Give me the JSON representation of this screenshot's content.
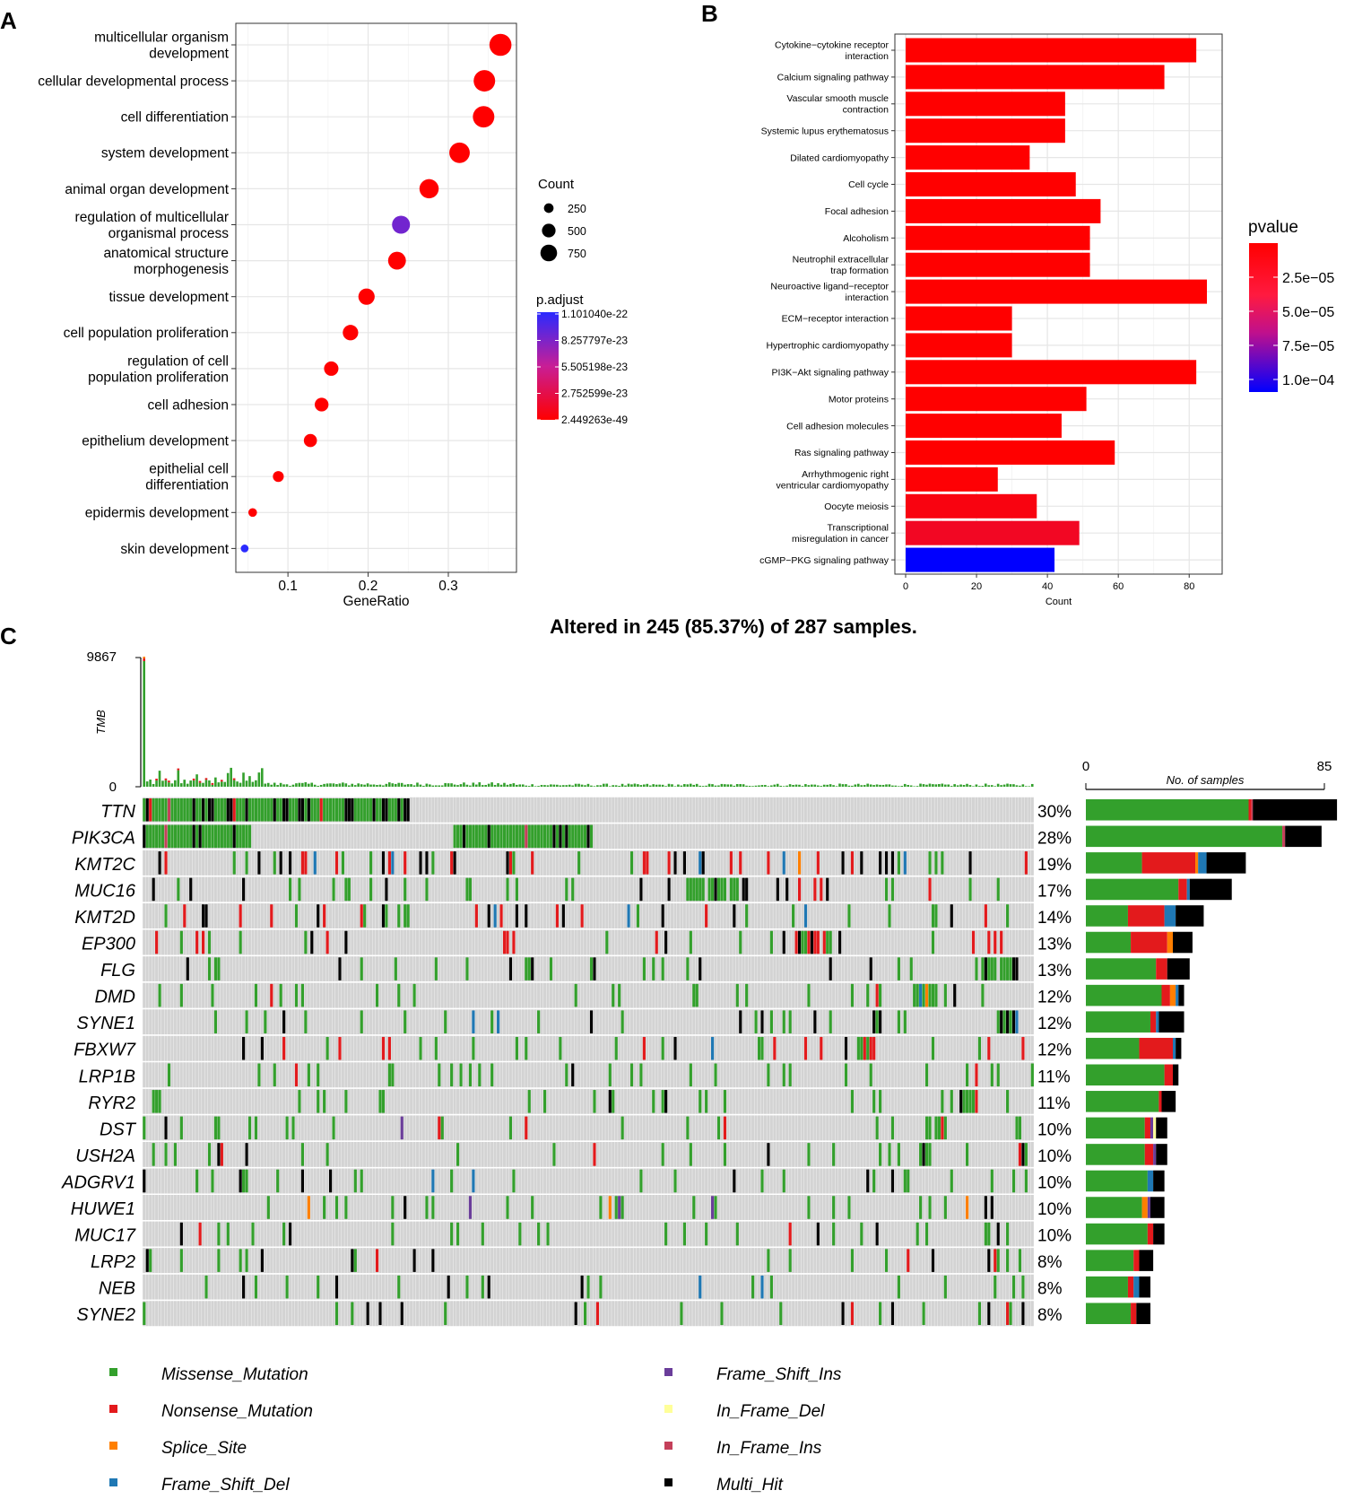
{
  "panels": {
    "a": "A",
    "b": "B",
    "c": "C"
  },
  "chart_data": [
    {
      "id": "A",
      "type": "scatter",
      "subtype": "dotplot",
      "xlabel": "GeneRatio",
      "ylabel": "",
      "xlim": [
        0.035,
        0.385
      ],
      "xticks": [
        0.1,
        0.2,
        0.3
      ],
      "xtick_labels": [
        "0.1",
        "0.2",
        "0.3"
      ],
      "grid": true,
      "categories": [
        "multicellular organism\ndevelopment",
        "cellular developmental process",
        "cell differentiation",
        "system development",
        "animal organ development",
        "regulation of multicellular\norganismal process",
        "anatomical structure\nmorphogenesis",
        "tissue development",
        "cell population proliferation",
        "regulation of cell\npopulation proliferation",
        "cell adhesion",
        "epithelium development",
        "epithelial cell\ndifferentiation",
        "epidermis development",
        "skin development"
      ],
      "gene_ratio": [
        0.365,
        0.345,
        0.344,
        0.314,
        0.276,
        0.241,
        0.236,
        0.198,
        0.178,
        0.154,
        0.142,
        0.128,
        0.088,
        0.056,
        0.046
      ],
      "count": [
        800,
        760,
        758,
        690,
        608,
        530,
        520,
        436,
        392,
        340,
        312,
        282,
        194,
        123,
        100
      ],
      "p_adjust": [
        2e-49,
        4e-49,
        6e-49,
        8e-49,
        1e-48,
        8.5e-23,
        1e-48,
        1.5e-48,
        2e-48,
        3e-48,
        4e-48,
        5e-48,
        1e-47,
        1e-30,
        1.1e-22
      ],
      "size_legend": {
        "title": "Count",
        "values": [
          250,
          500,
          750
        ],
        "labels": [
          "250",
          "500",
          "750"
        ]
      },
      "color_legend": {
        "title": "p.adjust",
        "labels": [
          "1.101040e-22",
          "8.257797e-23",
          "5.505198e-23",
          "2.752599e-23",
          "2.449263e-49"
        ],
        "low_color": "#ff0000",
        "high_color": "#2a2aff"
      }
    },
    {
      "id": "B",
      "type": "bar",
      "orientation": "horizontal",
      "xlabel": "Count",
      "ylabel": "",
      "xlim": [
        0,
        88
      ],
      "xticks": [
        0,
        20,
        40,
        60,
        80
      ],
      "xtick_labels": [
        "0",
        "20",
        "40",
        "60",
        "80"
      ],
      "grid": true,
      "categories": [
        "Cytokine−cytokine receptor\ninteraction",
        "Calcium signaling pathway",
        "Vascular smooth muscle\ncontraction",
        "Systemic lupus erythematosus",
        "Dilated cardiomyopathy",
        "Cell cycle",
        "Focal adhesion",
        "Alcoholism",
        "Neutrophil extracellular\ntrap formation",
        "Neuroactive ligand−receptor\ninteraction",
        "ECM−receptor interaction",
        "Hypertrophic cardiomyopathy",
        "PI3K−Akt signaling pathway",
        "Motor proteins",
        "Cell adhesion molecules",
        "Ras signaling pathway",
        "Arrhythmogenic right\nventricular cardiomyopathy",
        "Oocyte meiosis",
        "Transcriptional\nmisregulation in cancer",
        "cGMP−PKG signaling pathway"
      ],
      "values": [
        82,
        73,
        45,
        45,
        35,
        48,
        55,
        52,
        52,
        85,
        30,
        30,
        82,
        51,
        44,
        59,
        26,
        37,
        49,
        42
      ],
      "pvalue": [
        1e-09,
        2e-09,
        3e-09,
        4e-09,
        5e-09,
        6e-09,
        7e-09,
        8e-09,
        9e-09,
        1e-08,
        1.2e-08,
        1.4e-08,
        1.6e-08,
        1.8e-08,
        2e-08,
        2.4e-08,
        1.5e-06,
        6e-06,
        1.3e-05,
        0.00011
      ],
      "color_legend": {
        "title": "pvalue",
        "labels": [
          "2.5e−05",
          "5.0e−05",
          "7.5e−05",
          "1.0e−04"
        ],
        "values": [
          2.5e-05,
          5e-05,
          7.5e-05,
          0.0001
        ],
        "low_color": "#ff0000",
        "high_color": "#0000ff"
      }
    },
    {
      "id": "C",
      "type": "heatmap",
      "subtype": "oncoplot",
      "title": "Altered in 245 (85.37%) of 287 samples.",
      "n_samples": 287,
      "tmb": {
        "ylabel": "TMB",
        "ymax": 9867,
        "tick_labels": [
          "9867",
          "0"
        ]
      },
      "genes": [
        "TTN",
        "PIK3CA",
        "KMT2C",
        "MUC16",
        "KMT2D",
        "EP300",
        "FLG",
        "DMD",
        "SYNE1",
        "FBXW7",
        "LRP1B",
        "RYR2",
        "DST",
        "USH2A",
        "ADGRV1",
        "HUWE1",
        "MUC17",
        "LRP2",
        "NEB",
        "SYNE2"
      ],
      "percent_labels": [
        "30%",
        "28%",
        "19%",
        "17%",
        "14%",
        "13%",
        "13%",
        "12%",
        "12%",
        "12%",
        "11%",
        "11%",
        "10%",
        "10%",
        "10%",
        "10%",
        "10%",
        "8%",
        "8%",
        "8%"
      ],
      "gene_bar_axis": {
        "title": "No. of samples",
        "min": 0,
        "max": 85,
        "tick_labels": [
          "0",
          "85"
        ]
      },
      "gene_bars": [
        {
          "Missense_Mutation": 58,
          "Nonsense_Mutation": 1,
          "Splice_Site": 0,
          "Frame_Shift_Del": 0,
          "Frame_Shift_Ins": 0,
          "In_Frame_Del": 0,
          "In_Frame_Ins": 0.5,
          "Multi_Hit": 30
        },
        {
          "Missense_Mutation": 70,
          "Nonsense_Mutation": 0,
          "Splice_Site": 0,
          "Frame_Shift_Del": 0,
          "Frame_Shift_Ins": 0,
          "In_Frame_Del": 0,
          "In_Frame_Ins": 1,
          "Multi_Hit": 13
        },
        {
          "Missense_Mutation": 20,
          "Nonsense_Mutation": 19,
          "Splice_Site": 1,
          "Frame_Shift_Del": 3,
          "Frame_Shift_Ins": 0,
          "In_Frame_Del": 0,
          "In_Frame_Ins": 0,
          "Multi_Hit": 14
        },
        {
          "Missense_Mutation": 33,
          "Nonsense_Mutation": 3,
          "Splice_Site": 0,
          "Frame_Shift_Del": 1,
          "Frame_Shift_Ins": 0,
          "In_Frame_Del": 0,
          "In_Frame_Ins": 0,
          "Multi_Hit": 15
        },
        {
          "Missense_Mutation": 15,
          "Nonsense_Mutation": 13,
          "Splice_Site": 0,
          "Frame_Shift_Del": 4,
          "Frame_Shift_Ins": 0,
          "In_Frame_Del": 0,
          "In_Frame_Ins": 0,
          "Multi_Hit": 10
        },
        {
          "Missense_Mutation": 16,
          "Nonsense_Mutation": 13,
          "Splice_Site": 2,
          "Frame_Shift_Del": 0,
          "Frame_Shift_Ins": 0,
          "In_Frame_Del": 0,
          "In_Frame_Ins": 0,
          "Multi_Hit": 7
        },
        {
          "Missense_Mutation": 25,
          "Nonsense_Mutation": 4,
          "Splice_Site": 0,
          "Frame_Shift_Del": 0,
          "Frame_Shift_Ins": 0,
          "In_Frame_Del": 0,
          "In_Frame_Ins": 0,
          "Multi_Hit": 8
        },
        {
          "Missense_Mutation": 27,
          "Nonsense_Mutation": 3,
          "Splice_Site": 2,
          "Frame_Shift_Del": 1,
          "Frame_Shift_Ins": 0,
          "In_Frame_Del": 0,
          "In_Frame_Ins": 0,
          "Multi_Hit": 2
        },
        {
          "Missense_Mutation": 23,
          "Nonsense_Mutation": 2,
          "Splice_Site": 0,
          "Frame_Shift_Del": 1,
          "Frame_Shift_Ins": 0,
          "In_Frame_Del": 0,
          "In_Frame_Ins": 0,
          "Multi_Hit": 9
        },
        {
          "Missense_Mutation": 19,
          "Nonsense_Mutation": 12,
          "Splice_Site": 0,
          "Frame_Shift_Del": 1,
          "Frame_Shift_Ins": 0,
          "In_Frame_Del": 0,
          "In_Frame_Ins": 0,
          "Multi_Hit": 2
        },
        {
          "Missense_Mutation": 28,
          "Nonsense_Mutation": 3,
          "Splice_Site": 0,
          "Frame_Shift_Del": 0,
          "Frame_Shift_Ins": 0,
          "In_Frame_Del": 0,
          "In_Frame_Ins": 0,
          "Multi_Hit": 2
        },
        {
          "Missense_Mutation": 26,
          "Nonsense_Mutation": 1,
          "Splice_Site": 0,
          "Frame_Shift_Del": 0,
          "Frame_Shift_Ins": 0,
          "In_Frame_Del": 0,
          "In_Frame_Ins": 0,
          "Multi_Hit": 5
        },
        {
          "Missense_Mutation": 21,
          "Nonsense_Mutation": 2,
          "Splice_Site": 0,
          "Frame_Shift_Del": 0,
          "Frame_Shift_Ins": 1,
          "In_Frame_Del": 1,
          "In_Frame_Ins": 0,
          "Multi_Hit": 4
        },
        {
          "Missense_Mutation": 21,
          "Nonsense_Mutation": 3,
          "Splice_Site": 0,
          "Frame_Shift_Del": 0,
          "Frame_Shift_Ins": 1,
          "In_Frame_Del": 0,
          "In_Frame_Ins": 0,
          "Multi_Hit": 4
        },
        {
          "Missense_Mutation": 22,
          "Nonsense_Mutation": 0,
          "Splice_Site": 0,
          "Frame_Shift_Del": 2,
          "Frame_Shift_Ins": 0,
          "In_Frame_Del": 0,
          "In_Frame_Ins": 0,
          "Multi_Hit": 4
        },
        {
          "Missense_Mutation": 20,
          "Nonsense_Mutation": 0,
          "Splice_Site": 2,
          "Frame_Shift_Del": 0,
          "Frame_Shift_Ins": 1,
          "In_Frame_Del": 0,
          "In_Frame_Ins": 0,
          "Multi_Hit": 5
        },
        {
          "Missense_Mutation": 22,
          "Nonsense_Mutation": 2,
          "Splice_Site": 0,
          "Frame_Shift_Del": 0,
          "Frame_Shift_Ins": 0,
          "In_Frame_Del": 0,
          "In_Frame_Ins": 0,
          "Multi_Hit": 4
        },
        {
          "Missense_Mutation": 17,
          "Nonsense_Mutation": 2,
          "Splice_Site": 0,
          "Frame_Shift_Del": 0,
          "Frame_Shift_Ins": 0,
          "In_Frame_Del": 0,
          "In_Frame_Ins": 0,
          "Multi_Hit": 5
        },
        {
          "Missense_Mutation": 15,
          "Nonsense_Mutation": 2,
          "Splice_Site": 0,
          "Frame_Shift_Del": 2,
          "Frame_Shift_Ins": 0,
          "In_Frame_Del": 0,
          "In_Frame_Ins": 0,
          "Multi_Hit": 4
        },
        {
          "Missense_Mutation": 16,
          "Nonsense_Mutation": 2,
          "Splice_Site": 0,
          "Frame_Shift_Del": 0,
          "Frame_Shift_Ins": 0,
          "In_Frame_Del": 0,
          "In_Frame_Ins": 0,
          "Multi_Hit": 5
        }
      ],
      "legend": [
        {
          "label": "Missense_Mutation",
          "color": "#33a02c"
        },
        {
          "label": "Nonsense_Mutation",
          "color": "#e31a1c"
        },
        {
          "label": "Splice_Site",
          "color": "#ff7f00"
        },
        {
          "label": "Frame_Shift_Del",
          "color": "#1f78b4"
        },
        {
          "label": "Frame_Shift_Ins",
          "color": "#6a3d9a"
        },
        {
          "label": "In_Frame_Del",
          "color": "#ffff99"
        },
        {
          "label": "In_Frame_Ins",
          "color": "#c4405a"
        },
        {
          "label": "Multi_Hit",
          "color": "#000000"
        }
      ]
    }
  ]
}
